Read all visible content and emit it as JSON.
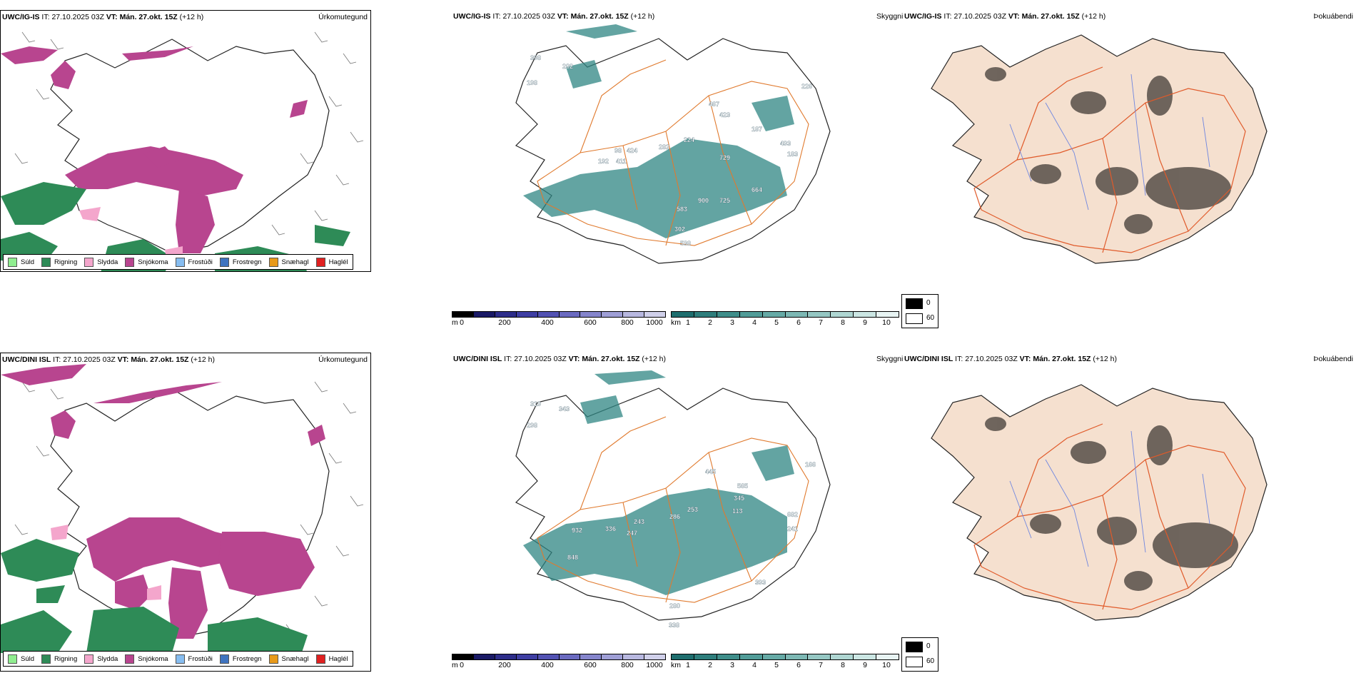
{
  "rows": [
    {
      "model": "UWC/IG-IS",
      "it_label": "IT:",
      "it_value": "27.10.2025 03Z",
      "vt_label": "VT:",
      "vt_value": "Mán. 27.okt. 15Z",
      "lead": "(+12 h)",
      "cloud_numbers": [
        "398",
        "202",
        "198",
        "467",
        "423",
        "282",
        "224",
        "98",
        "424",
        "411",
        "192",
        "729",
        "187",
        "493",
        "183",
        "583",
        "900",
        "725",
        "664",
        "302",
        "538",
        "226"
      ]
    },
    {
      "model": "UWC/DINI ISL",
      "it_label": "IT:",
      "it_value": "27.10.2025 03Z",
      "vt_label": "VT:",
      "vt_value": "Mán. 27.okt. 15Z",
      "lead": "(+12 h)",
      "cloud_numbers": [
        "319",
        "343",
        "298",
        "445",
        "565",
        "345",
        "253",
        "286",
        "113",
        "243",
        "932",
        "336",
        "247",
        "848",
        "280",
        "338",
        "393",
        "241",
        "166",
        "682"
      ]
    }
  ],
  "panel_labels": {
    "precip_type": "Úrkomutegund",
    "cloud": "Skyggni",
    "fog": "Þokuábendi"
  },
  "precip_legend": [
    {
      "label": "Súld",
      "color": "#90ee90"
    },
    {
      "label": "Rigning",
      "color": "#2e8b57"
    },
    {
      "label": "Slydda",
      "color": "#f4a6cc"
    },
    {
      "label": "Snjókoma",
      "color": "#b8458f"
    },
    {
      "label": "Frostúði",
      "color": "#87bdf0"
    },
    {
      "label": "Frostregn",
      "color": "#3f74c0"
    },
    {
      "label": "Snæhagl",
      "color": "#e89a1a"
    },
    {
      "label": "Haglél",
      "color": "#e02020"
    }
  ],
  "colorbar_base": {
    "unit": "m",
    "ticks": [
      "0",
      "200",
      "400",
      "600",
      "800",
      "1000"
    ],
    "colors": [
      "#000000",
      "#1a1a66",
      "#2d2d8a",
      "#3e3ea3",
      "#5252b3",
      "#6a6ac0",
      "#8585cc",
      "#9f9fd6",
      "#b8b8e0",
      "#d0d0ea"
    ]
  },
  "colorbar_vis": {
    "unit": "km",
    "ticks": [
      "1",
      "2",
      "3",
      "4",
      "5",
      "6",
      "7",
      "8",
      "9",
      "10"
    ],
    "colors": [
      "#1e6e6e",
      "#2e7e7c",
      "#3f8e8a",
      "#519c98",
      "#66aaa6",
      "#7db8b4",
      "#95c7c3",
      "#afd6d2",
      "#cbe6e3",
      "#e8f4f3"
    ]
  },
  "fog_legend": [
    {
      "value": "0",
      "color": "#000000"
    },
    {
      "value": "60",
      "color": "#ffffff"
    }
  ],
  "colors": {
    "snow": "#b8458f",
    "rain": "#2e8b57",
    "sleet": "#f4a6cc",
    "teal": "#2f8683",
    "road": "#e07a2e",
    "land": "#f5e0cf"
  }
}
